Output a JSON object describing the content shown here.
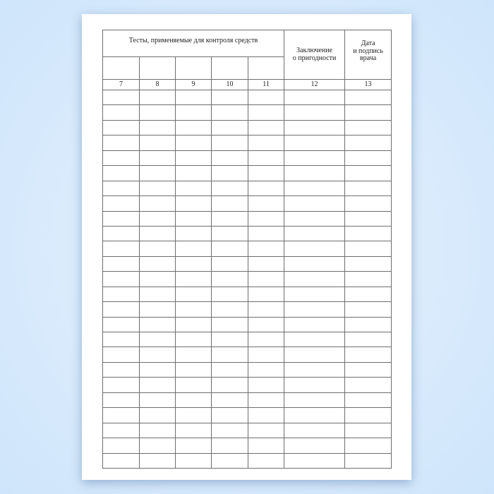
{
  "table": {
    "group_header": "Тесты, применяемые для контроля средств",
    "conclusion_header": "Заключение\nо пригодности",
    "date_header": "Дата\nи подпись\nврача",
    "column_numbers": [
      "7",
      "8",
      "9",
      "10",
      "11",
      "12",
      "13"
    ],
    "empty_row_count": 25
  }
}
